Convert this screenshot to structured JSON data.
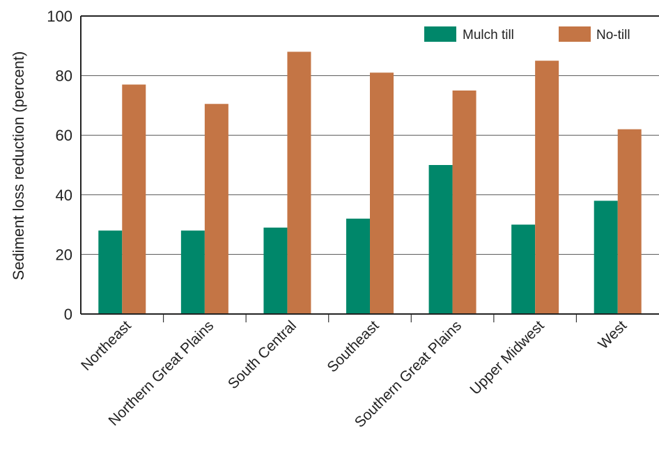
{
  "chart_data": {
    "type": "bar",
    "title": "",
    "xlabel": "",
    "ylabel": "Sediment loss reduction (percent)",
    "ylim": [
      0,
      100
    ],
    "yticks": [
      0,
      20,
      40,
      60,
      80,
      100
    ],
    "grid": true,
    "legend_position": "top-right",
    "categories": [
      "Northeast",
      "Northern Great Plains",
      "South Central",
      "Southeast",
      "Southern Great Plains",
      "Upper Midwest",
      "West"
    ],
    "series": [
      {
        "name": "Mulch till",
        "color": "#00876a",
        "values": [
          28,
          28,
          29,
          32,
          50,
          30,
          38
        ]
      },
      {
        "name": "No-till",
        "color": "#c47545",
        "values": [
          77,
          70.5,
          88,
          81,
          75,
          85,
          62
        ]
      }
    ]
  }
}
